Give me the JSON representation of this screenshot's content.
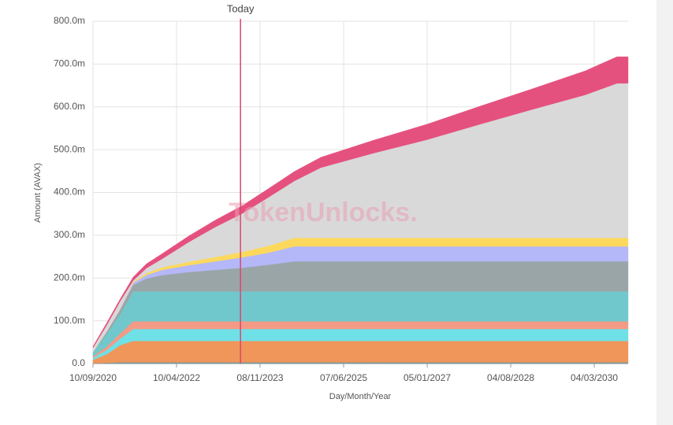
{
  "chart_data": {
    "type": "stacked-area",
    "watermark": "TokenUnlocks.",
    "x_label": "Day/Month/Year",
    "y_label": "Amount (AVAX)",
    "today": {
      "x": 2023.48,
      "label": "Today"
    },
    "x": [
      2020.69,
      2020.95,
      2021.2,
      2021.45,
      2021.7,
      2022.0,
      2022.5,
      2023.0,
      2023.5,
      2024.0,
      2024.5,
      2025.0,
      2026.0,
      2027.0,
      2028.0,
      2029.0,
      2030.0,
      2030.6,
      2030.81
    ],
    "series": [
      {
        "color": "#5a9ea8",
        "values": [
          1,
          2,
          3,
          3,
          3,
          3,
          3,
          3,
          3,
          3,
          3,
          3,
          3,
          3,
          3,
          3,
          3,
          3,
          3
        ]
      },
      {
        "color": "#f0965a",
        "values": [
          8,
          20,
          40,
          50,
          50,
          50,
          50,
          50,
          50,
          50,
          50,
          50,
          50,
          50,
          50,
          50,
          50,
          50,
          50
        ]
      },
      {
        "color": "#6ee0e6",
        "values": [
          5,
          10,
          15,
          28,
          28,
          28,
          28,
          28,
          28,
          28,
          28,
          28,
          28,
          28,
          28,
          28,
          28,
          28,
          28
        ]
      },
      {
        "color": "#f39a86",
        "values": [
          3,
          8,
          12,
          18,
          18,
          18,
          18,
          18,
          18,
          18,
          18,
          18,
          18,
          18,
          18,
          18,
          18,
          18,
          18
        ]
      },
      {
        "color": "#70c8cc",
        "values": [
          10,
          30,
          45,
          70,
          70,
          70,
          70,
          70,
          70,
          70,
          70,
          70,
          70,
          70,
          70,
          70,
          70,
          70,
          70
        ]
      },
      {
        "color": "#9aa5a8",
        "values": [
          0,
          5,
          10,
          15,
          30,
          38,
          45,
          50,
          55,
          62,
          70,
          70,
          70,
          70,
          70,
          70,
          70,
          70,
          70
        ]
      },
      {
        "color": "#b4b8f8",
        "values": [
          0,
          0,
          2,
          5,
          8,
          12,
          16,
          20,
          24,
          28,
          35,
          35,
          35,
          35,
          35,
          35,
          35,
          35,
          35
        ]
      },
      {
        "color": "#fcd95c",
        "values": [
          0,
          0,
          1,
          2,
          4,
          6,
          8,
          10,
          13,
          16,
          20,
          20,
          20,
          20,
          20,
          20,
          20,
          20,
          20
        ]
      },
      {
        "color": "#d9d9d9",
        "values": [
          10,
          15,
          17,
          3,
          12,
          20,
          46,
          70,
          89,
          113,
          133,
          164,
          198,
          229,
          265,
          300,
          334,
          361,
          361
        ]
      },
      {
        "color": "#e5517f",
        "values": [
          3,
          5,
          5,
          8,
          10,
          12,
          14,
          16,
          18,
          20,
          22,
          24,
          30,
          36,
          42,
          48,
          56,
          62,
          62
        ]
      }
    ],
    "xlim": [
      2020.69,
      2030.81
    ],
    "xticks": [
      {
        "value": 2020.69,
        "label": "10/09/2020"
      },
      {
        "value": 2022.27,
        "label": "10/04/2022"
      },
      {
        "value": 2023.85,
        "label": "08/11/2023"
      },
      {
        "value": 2025.43,
        "label": "07/06/2025"
      },
      {
        "value": 2027.01,
        "label": "05/01/2027"
      },
      {
        "value": 2028.59,
        "label": "04/08/2028"
      },
      {
        "value": 2030.17,
        "label": "04/03/2030"
      }
    ],
    "ylim": [
      0,
      800
    ],
    "yticks": [
      {
        "value": 0,
        "label": "0.0"
      },
      {
        "value": 100,
        "label": "100.0m"
      },
      {
        "value": 200,
        "label": "200.0m"
      },
      {
        "value": 300,
        "label": "300.0m"
      },
      {
        "value": 400,
        "label": "400.0m"
      },
      {
        "value": 500,
        "label": "500.0m"
      },
      {
        "value": 600,
        "label": "600.0m"
      },
      {
        "value": 700,
        "label": "700.0m"
      },
      {
        "value": 800,
        "label": "800.0m"
      }
    ],
    "grid": true
  }
}
